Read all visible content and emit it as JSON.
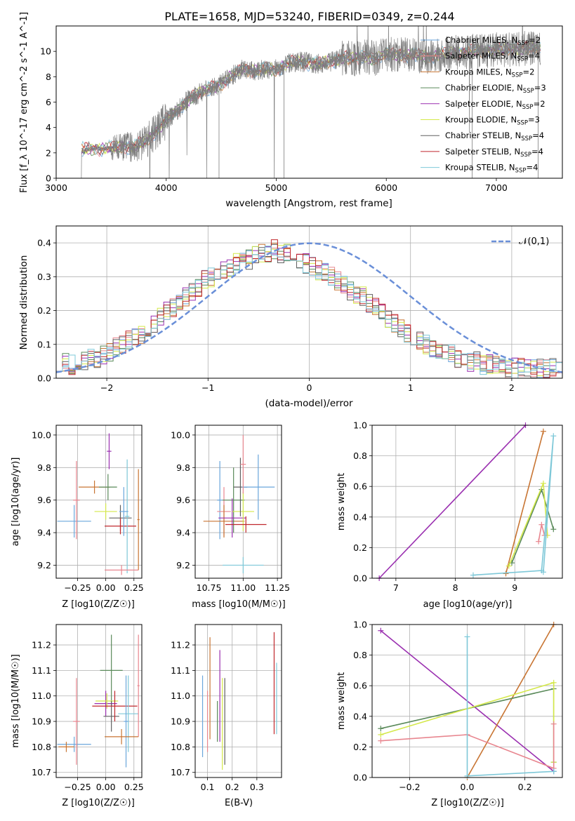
{
  "chart_data": [
    {
      "type": "line",
      "title": "PLATE=1658, MJD=53240, FIBERID=0349, z=0.244",
      "xlabel": "wavelength [Angstrom, rest frame]",
      "ylabel": "Flux [f_λ 10^-17 erg cm^-2 s^-1 A^-1]",
      "xlim": [
        3000,
        7600
      ],
      "ylim": [
        0,
        12
      ],
      "xticks": [
        "3000",
        "4000",
        "5000",
        "6000",
        "7000"
      ],
      "yticks": [
        "0",
        "2",
        "4",
        "6",
        "8",
        "10"
      ],
      "grid": false,
      "legend_position": "top-right",
      "legend": [
        "Chabrier MILES, N_SSP=2",
        "Salpeter MILES, N_SSP=4",
        "Kroupa MILES, N_SSP=2",
        "Chabrier ELODIE, N_SSP=3",
        "Salpeter ELODIE, N_SSP=2",
        "Kroupa ELODIE, N_SSP=3",
        "Chabrier STELIB, N_SSP=4",
        "Salpeter STELIB, N_SSP=4",
        "Kroupa STELIB, N_SSP=4"
      ],
      "continuum": {
        "x": [
          3230,
          3300,
          3400,
          3500,
          3600,
          3700,
          3800,
          3900,
          4000,
          4100,
          4200,
          4300,
          4400,
          4500,
          4600,
          4700,
          4800,
          4900,
          5000,
          5100,
          5200,
          5300,
          5400,
          5500,
          5600,
          5700,
          5800,
          5900,
          6000,
          6200,
          6400,
          6600,
          6800,
          7000,
          7200,
          7400
        ],
        "y": [
          2.2,
          2.3,
          2.3,
          2.4,
          2.5,
          2.5,
          2.8,
          3.6,
          4.6,
          5.3,
          6.2,
          6.7,
          7.1,
          7.4,
          8.1,
          8.7,
          8.4,
          8.6,
          8.6,
          9.0,
          9.2,
          9.1,
          9.0,
          9.2,
          9.5,
          9.4,
          9.6,
          9.4,
          9.8,
          9.7,
          9.6,
          9.9,
          10.0,
          10.1,
          10.2,
          10.3
        ]
      }
    },
    {
      "type": "bar",
      "xlabel": "(data-model)/error",
      "ylabel": "Normed distribution",
      "xlim": [
        -2.5,
        2.5
      ],
      "ylim": [
        0,
        0.45
      ],
      "xticks": [
        "−2",
        "−1",
        "0",
        "1",
        "2"
      ],
      "yticks": [
        "0.0",
        "0.1",
        "0.2",
        "0.3",
        "0.4"
      ],
      "grid": true,
      "legend_position": "top-right",
      "legend": [
        "𝒩(0,1)"
      ],
      "bin_width": 0.1,
      "base_histogram": [
        0.05,
        0.05,
        0.04,
        0.05,
        0.05,
        0.06,
        0.05,
        0.07,
        0.08,
        0.09,
        0.1,
        0.11,
        0.12,
        0.13,
        0.14,
        0.16,
        0.18,
        0.2,
        0.21,
        0.23,
        0.24,
        0.26,
        0.27,
        0.29,
        0.3,
        0.31,
        0.32,
        0.33,
        0.34,
        0.35,
        0.35,
        0.36,
        0.37,
        0.37,
        0.38,
        0.37,
        0.37,
        0.36,
        0.35,
        0.34,
        0.33,
        0.32,
        0.31,
        0.3,
        0.29,
        0.28,
        0.26,
        0.25,
        0.24,
        0.22,
        0.21,
        0.19,
        0.18,
        0.16,
        0.15,
        0.13,
        0.12,
        0.11,
        0.1,
        0.09,
        0.08,
        0.07,
        0.07,
        0.06,
        0.06,
        0.05,
        0.05,
        0.04,
        0.04,
        0.04,
        0.04,
        0.03,
        0.03,
        0.03,
        0.03,
        0.03,
        0.03,
        0.03,
        0.03,
        0.03
      ]
    },
    {
      "type": "scatter",
      "xlabel": "Z [log10(Z/Z☉)]",
      "ylabel": "age [log10(age/yr)]",
      "xlim": [
        -0.44,
        0.32
      ],
      "ylim": [
        9.12,
        10.06
      ],
      "xticks": [
        "−0.25",
        "0.00",
        "0.25"
      ],
      "yticks": [
        "9.2",
        "9.4",
        "9.6",
        "9.8",
        "10.0"
      ],
      "grid": true,
      "points": [
        {
          "x": -0.28,
          "y": 9.47,
          "xerr": 0.15,
          "yerr": 0.1
        },
        {
          "x": -0.26,
          "y": 9.6,
          "xerr": 0.03,
          "yerr": 0.24
        },
        {
          "x": -0.1,
          "y": 9.68,
          "xerr": 0.14,
          "yerr": 0.04
        },
        {
          "x": 0.02,
          "y": 9.68,
          "xerr": 0.08,
          "yerr": 0.08
        },
        {
          "x": 0.03,
          "y": 9.9,
          "xerr": 0.02,
          "yerr": 0.11
        },
        {
          "x": 0.0,
          "y": 9.53,
          "xerr": 0.1,
          "yerr": 0.05
        },
        {
          "x": 0.13,
          "y": 9.49,
          "xerr": 0.1,
          "yerr": 0.08
        },
        {
          "x": 0.13,
          "y": 9.44,
          "xerr": 0.14,
          "yerr": 0.05
        },
        {
          "x": 0.19,
          "y": 9.5,
          "xerr": 0.02,
          "yerr": 0.35
        },
        {
          "x": 0.16,
          "y": 9.53,
          "xerr": 0.04,
          "yerr": 0.15
        },
        {
          "x": 0.14,
          "y": 9.17,
          "xerr": 0.15,
          "yerr": 0.03
        },
        {
          "x": 0.29,
          "y": 9.48,
          "xerr": 0.01,
          "yerr": 0.31
        }
      ]
    },
    {
      "type": "scatter",
      "xlabel": "mass [log10(M/M☉)]",
      "ylabel": "",
      "xlim": [
        10.65,
        11.28
      ],
      "ylim": [
        9.12,
        10.06
      ],
      "xticks": [
        "10.75",
        "11.00",
        "11.25"
      ],
      "yticks": [
        "9.2",
        "9.4",
        "9.6",
        "9.8",
        "10.0"
      ],
      "grid": true,
      "points": [
        {
          "x": 10.83,
          "y": 9.6,
          "xerr": 0.02,
          "yerr": 0.24
        },
        {
          "x": 10.86,
          "y": 9.53,
          "xerr": 0.05,
          "yerr": 0.15
        },
        {
          "x": 10.86,
          "y": 9.47,
          "xerr": 0.15,
          "yerr": 0.1
        },
        {
          "x": 10.93,
          "y": 9.6,
          "xerr": 0.08,
          "yerr": 0.2
        },
        {
          "x": 10.92,
          "y": 9.49,
          "xerr": 0.1,
          "yerr": 0.12
        },
        {
          "x": 11.0,
          "y": 9.53,
          "xerr": 0.08,
          "yerr": 0.12
        },
        {
          "x": 10.98,
          "y": 9.68,
          "xerr": 0.05,
          "yerr": 0.18
        },
        {
          "x": 11.02,
          "y": 9.45,
          "xerr": 0.15,
          "yerr": 0.05
        },
        {
          "x": 11.0,
          "y": 9.2,
          "xerr": 0.15,
          "yerr": 0.05
        },
        {
          "x": 11.11,
          "y": 9.68,
          "xerr": 0.12,
          "yerr": 0.2
        },
        {
          "x": 11.0,
          "y": 9.82,
          "xerr": 0.02,
          "yerr": 0.18
        }
      ]
    },
    {
      "type": "line",
      "xlabel": "age [log10(age/yr)]",
      "ylabel": "mass weight",
      "xlim": [
        6.6,
        9.8
      ],
      "ylim": [
        0,
        1
      ],
      "xticks": [
        "7",
        "8",
        "9"
      ],
      "yticks": [
        "0.0",
        "0.2",
        "0.4",
        "0.6",
        "0.8",
        "1.0"
      ],
      "grid": true,
      "series": [
        {
          "x": [
            6.72,
            9.18
          ],
          "y": [
            0.0,
            1.0
          ]
        },
        {
          "x": [
            8.85,
            9.48
          ],
          "y": [
            0.03,
            0.96
          ]
        },
        {
          "x": [
            8.95,
            9.45,
            9.65
          ],
          "y": [
            0.1,
            0.58,
            0.32
          ]
        },
        {
          "x": [
            8.9,
            9.48,
            9.55
          ],
          "y": [
            0.08,
            0.62,
            0.28
          ]
        },
        {
          "x": [
            9.4,
            9.45,
            9.5
          ],
          "y": [
            0.24,
            0.35,
            0.28
          ]
        },
        {
          "x": [
            8.3,
            9.45,
            9.65,
            9.48
          ],
          "y": [
            0.02,
            0.05,
            0.93,
            0.04
          ]
        }
      ]
    },
    {
      "type": "scatter",
      "xlabel": "Z [log10(Z/Z☉)]",
      "ylabel": "mass [log10(M/M☉)]",
      "xlim": [
        -0.44,
        0.32
      ],
      "ylim": [
        10.68,
        11.28
      ],
      "xticks": [
        "−0.25",
        "0.00",
        "0.25"
      ],
      "yticks": [
        "10.7",
        "10.8",
        "10.9",
        "11.0",
        "11.1",
        "11.2"
      ],
      "grid": true,
      "points": [
        {
          "x": -0.28,
          "y": 10.81,
          "xerr": 0.15,
          "yerr": 0.03
        },
        {
          "x": -0.26,
          "y": 10.9,
          "xerr": 0.03,
          "yerr": 0.17
        },
        {
          "x": -0.35,
          "y": 10.8,
          "xerr": 0.07,
          "yerr": 0.02
        },
        {
          "x": 0.05,
          "y": 11.1,
          "xerr": 0.1,
          "yerr": 0.14
        },
        {
          "x": 0.0,
          "y": 10.97,
          "xerr": 0.1,
          "yerr": 0.05
        },
        {
          "x": 0.01,
          "y": 10.98,
          "xerr": 0.1,
          "yerr": 0.03
        },
        {
          "x": 0.05,
          "y": 10.92,
          "xerr": 0.07,
          "yerr": 0.06
        },
        {
          "x": 0.08,
          "y": 10.96,
          "xerr": 0.2,
          "yerr": 0.06
        },
        {
          "x": 0.2,
          "y": 10.93,
          "xerr": 0.09,
          "yerr": 0.15
        },
        {
          "x": 0.18,
          "y": 10.9,
          "xerr": 0.02,
          "yerr": 0.18
        },
        {
          "x": 0.29,
          "y": 11.04,
          "xerr": 0.01,
          "yerr": 0.2
        },
        {
          "x": 0.14,
          "y": 10.84,
          "xerr": 0.15,
          "yerr": 0.03
        }
      ]
    },
    {
      "type": "scatter",
      "xlabel": "E(B-V)",
      "ylabel": "",
      "xlim": [
        0.05,
        0.4
      ],
      "ylim": [
        10.68,
        11.28
      ],
      "xticks": [
        "0.1",
        "0.2",
        "0.3"
      ],
      "yticks": [
        "10.7",
        "10.8",
        "10.9",
        "11.0",
        "11.1",
        "11.2"
      ],
      "grid": true,
      "points": [
        {
          "x": 0.08,
          "y": 10.92,
          "yerr": 0.16
        },
        {
          "x": 0.1,
          "y": 10.9,
          "yerr": 0.12
        },
        {
          "x": 0.11,
          "y": 11.03,
          "yerr": 0.2
        },
        {
          "x": 0.14,
          "y": 10.9,
          "yerr": 0.08
        },
        {
          "x": 0.15,
          "y": 11.0,
          "yerr": 0.18
        },
        {
          "x": 0.16,
          "y": 10.89,
          "yerr": 0.18
        },
        {
          "x": 0.17,
          "y": 10.9,
          "yerr": 0.17
        },
        {
          "x": 0.37,
          "y": 11.05,
          "yerr": 0.2
        },
        {
          "x": 0.38,
          "y": 10.99,
          "yerr": 0.14
        }
      ]
    },
    {
      "type": "line",
      "xlabel": "Z [log10(Z/Z☉)]",
      "ylabel": "mass weight",
      "xlim": [
        -0.33,
        0.33
      ],
      "ylim": [
        0,
        1
      ],
      "xticks": [
        "−0.2",
        "0.0",
        "0.2"
      ],
      "yticks": [
        "0.0",
        "0.2",
        "0.4",
        "0.6",
        "0.8",
        "1.0"
      ],
      "grid": true,
      "series": [
        {
          "x": [
            -0.3,
            0.3
          ],
          "y": [
            0.96,
            0.04
          ]
        },
        {
          "x": [
            0.0,
            0.3
          ],
          "y": [
            0.0,
            1.0
          ]
        },
        {
          "x": [
            -0.3,
            0.3,
            0.3
          ],
          "y": [
            0.32,
            0.58,
            0.1
          ]
        },
        {
          "x": [
            -0.3,
            0.3,
            0.3
          ],
          "y": [
            0.28,
            0.62,
            0.1
          ]
        },
        {
          "x": [
            -0.3,
            0.0,
            0.3,
            0.3
          ],
          "y": [
            0.24,
            0.28,
            0.06,
            0.35
          ]
        },
        {
          "x": [
            0.0,
            0.0,
            0.3,
            0.3
          ],
          "y": [
            0.92,
            0.01,
            0.04,
            0.04
          ]
        }
      ]
    }
  ],
  "colors": {
    "spectrum": "#7f7f7f",
    "gaussian": "#6a8fd8",
    "grid": "#b0b0b0",
    "series": [
      "#6aa6dc",
      "#e8868f",
      "#c87533",
      "#5a8a5a",
      "#9a2fb0",
      "#d4e84a",
      "#606060",
      "#c0282d",
      "#7ec8d8"
    ],
    "lines2": [
      "#9a2fb0",
      "#c87533",
      "#5a8a5a",
      "#d4e84a",
      "#e8868f",
      "#7ec8d8"
    ]
  }
}
